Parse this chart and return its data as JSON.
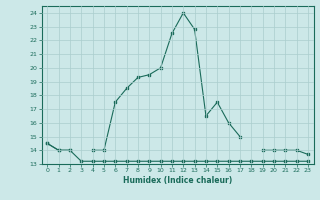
{
  "xlabel": "Humidex (Indice chaleur)",
  "x": [
    0,
    1,
    2,
    3,
    4,
    5,
    6,
    7,
    8,
    9,
    10,
    11,
    12,
    13,
    14,
    15,
    16,
    17,
    18,
    19,
    20,
    21,
    22,
    23
  ],
  "line1_y": [
    14.5,
    14.0,
    14.0,
    13.2,
    13.2,
    13.2,
    13.2,
    13.2,
    13.2,
    13.2,
    13.2,
    13.2,
    13.2,
    13.2,
    13.2,
    13.2,
    13.2,
    13.2,
    13.2,
    13.2,
    13.2,
    13.2,
    13.2,
    13.2
  ],
  "line2_y": [
    14.5,
    14.0,
    14.0,
    null,
    14.0,
    14.0,
    17.5,
    18.5,
    19.3,
    19.5,
    20.0,
    22.5,
    24.0,
    22.8,
    16.5,
    17.5,
    16.0,
    15.0,
    null,
    14.0,
    14.0,
    14.0,
    14.0,
    13.7
  ],
  "ylim": [
    13,
    24.5
  ],
  "xlim": [
    -0.5,
    23.5
  ],
  "yticks": [
    13,
    14,
    15,
    16,
    17,
    18,
    19,
    20,
    21,
    22,
    23,
    24
  ],
  "xticks": [
    0,
    1,
    2,
    3,
    4,
    5,
    6,
    7,
    8,
    9,
    10,
    11,
    12,
    13,
    14,
    15,
    16,
    17,
    18,
    19,
    20,
    21,
    22,
    23
  ],
  "line_color": "#1a6b5a",
  "bg_color": "#cce8e8",
  "grid_color": "#aacece"
}
